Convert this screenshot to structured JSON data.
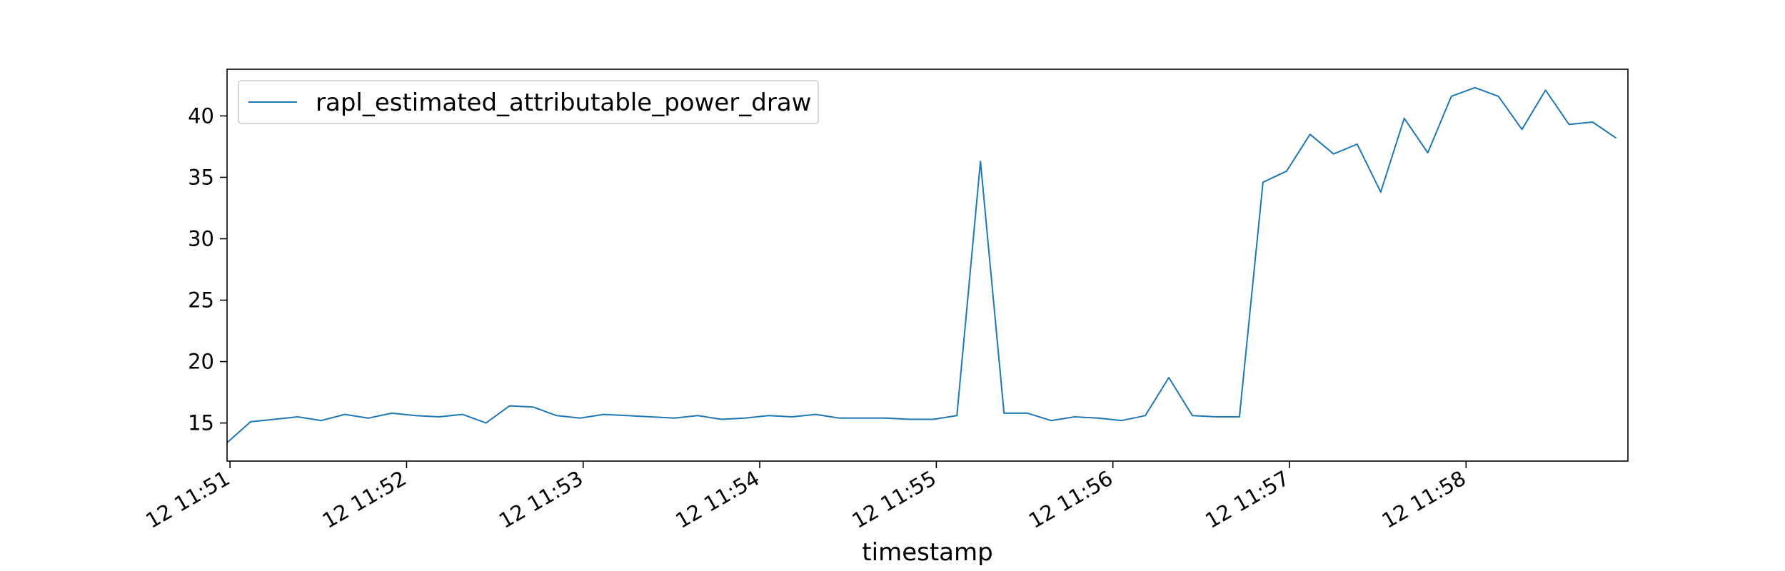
{
  "chart_data": {
    "type": "line",
    "title": "",
    "xlabel": "timestamp",
    "ylabel": "",
    "legend": {
      "placement": "top-left"
    },
    "grid": false,
    "x_ticks": [
      {
        "time": "11:51",
        "label": "12 11:51"
      },
      {
        "time": "11:52",
        "label": "12 11:52"
      },
      {
        "time": "11:53",
        "label": "12 11:53"
      },
      {
        "time": "11:54",
        "label": "12 11:54"
      },
      {
        "time": "11:55",
        "label": "12 11:55"
      },
      {
        "time": "11:56",
        "label": "12 11:56"
      },
      {
        "time": "11:57",
        "label": "12 11:57"
      },
      {
        "time": "11:58",
        "label": "12 11:58"
      }
    ],
    "y_ticks": [
      15,
      20,
      25,
      30,
      35,
      40
    ],
    "xlim": [
      "11:50:59",
      "11:58:55"
    ],
    "ylim": [
      11.9,
      43.8
    ],
    "series": [
      {
        "name": "rapl_estimated_attributable_power_draw",
        "color": "#1f77b4",
        "points": [
          [
            "11:50:59",
            13.4
          ],
          [
            "11:51:07",
            15.1
          ],
          [
            "11:51:15",
            15.3
          ],
          [
            "11:51:23",
            15.5
          ],
          [
            "11:51:31",
            15.2
          ],
          [
            "11:51:39",
            15.7
          ],
          [
            "11:51:47",
            15.4
          ],
          [
            "11:51:55",
            15.8
          ],
          [
            "11:52:03",
            15.6
          ],
          [
            "11:52:11",
            15.5
          ],
          [
            "11:52:19",
            15.7
          ],
          [
            "11:52:27",
            15.0
          ],
          [
            "11:52:35",
            16.4
          ],
          [
            "11:52:43",
            16.3
          ],
          [
            "11:52:51",
            15.6
          ],
          [
            "11:52:59",
            15.4
          ],
          [
            "11:53:07",
            15.7
          ],
          [
            "11:53:15",
            15.6
          ],
          [
            "11:53:23",
            15.5
          ],
          [
            "11:53:31",
            15.4
          ],
          [
            "11:53:39",
            15.6
          ],
          [
            "11:53:47",
            15.3
          ],
          [
            "11:53:55",
            15.4
          ],
          [
            "11:54:03",
            15.6
          ],
          [
            "11:54:11",
            15.5
          ],
          [
            "11:54:19",
            15.7
          ],
          [
            "11:54:27",
            15.4
          ],
          [
            "11:54:35",
            15.4
          ],
          [
            "11:54:43",
            15.4
          ],
          [
            "11:54:51",
            15.3
          ],
          [
            "11:54:59",
            15.3
          ],
          [
            "11:55:07",
            15.6
          ],
          [
            "11:55:15",
            36.3
          ],
          [
            "11:55:23",
            15.8
          ],
          [
            "11:55:31",
            15.8
          ],
          [
            "11:55:39",
            15.2
          ],
          [
            "11:55:47",
            15.5
          ],
          [
            "11:55:55",
            15.4
          ],
          [
            "11:56:03",
            15.2
          ],
          [
            "11:56:11",
            15.6
          ],
          [
            "11:56:19",
            18.7
          ],
          [
            "11:56:27",
            15.6
          ],
          [
            "11:56:35",
            15.5
          ],
          [
            "11:56:43",
            15.5
          ],
          [
            "11:56:51",
            34.6
          ],
          [
            "11:56:59",
            35.5
          ],
          [
            "11:57:07",
            38.5
          ],
          [
            "11:57:15",
            36.9
          ],
          [
            "11:57:23",
            37.7
          ],
          [
            "11:57:31",
            33.8
          ],
          [
            "11:57:39",
            39.8
          ],
          [
            "11:57:47",
            37.0
          ],
          [
            "11:57:55",
            41.6
          ],
          [
            "11:58:03",
            42.3
          ],
          [
            "11:58:11",
            41.6
          ],
          [
            "11:58:19",
            38.9
          ],
          [
            "11:58:27",
            42.1
          ],
          [
            "11:58:35",
            39.3
          ],
          [
            "11:58:43",
            39.5
          ],
          [
            "11:58:51",
            38.2
          ]
        ]
      }
    ]
  }
}
